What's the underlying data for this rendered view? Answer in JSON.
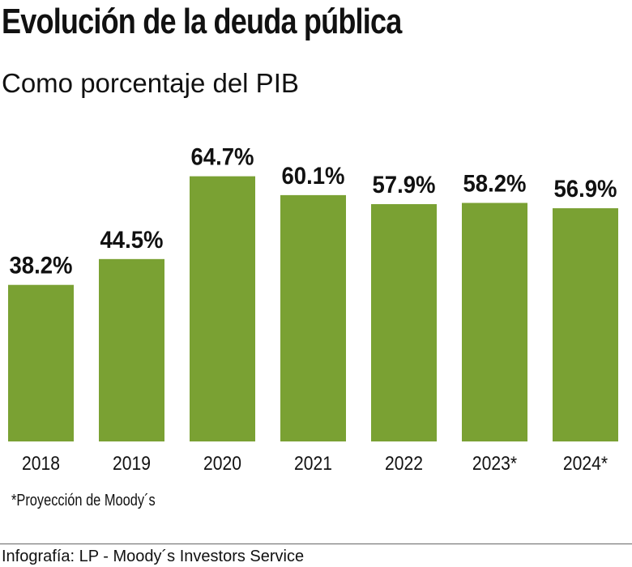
{
  "title": "Evolución de la deuda pública",
  "subtitle": "Como porcentaje del PIB",
  "note": "*Proyección de Moody´s",
  "source": "Infografía: LP - Moody´s Investors Service",
  "chart_data": {
    "type": "bar",
    "title": "Evolución de la deuda pública",
    "subtitle": "Como porcentaje del PIB",
    "categories": [
      "2018",
      "2019",
      "2020",
      "2021",
      "2022",
      "2023*",
      "2024*"
    ],
    "values": [
      38.2,
      44.5,
      64.7,
      60.1,
      57.9,
      58.2,
      56.9
    ],
    "labels": [
      "38.2%",
      "44.5%",
      "64.7%",
      "60.1%",
      "57.9%",
      "58.2%",
      "56.9%"
    ],
    "ylim": [
      0,
      70
    ],
    "grid": false,
    "bar_color": "#7aa133"
  }
}
